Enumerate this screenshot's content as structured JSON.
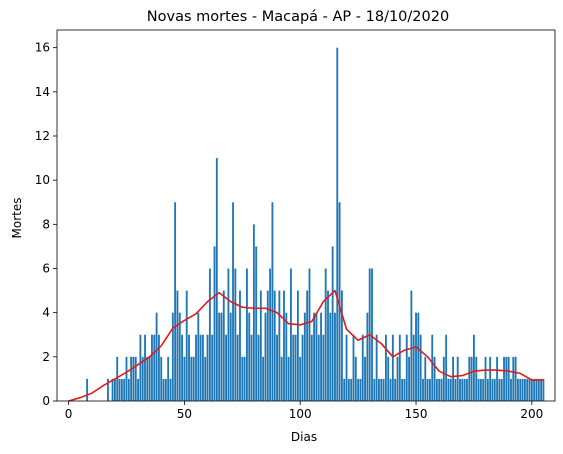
{
  "chart_data": {
    "type": "bar",
    "title": "Novas mortes - Macapá - AP - 18/10/2020",
    "xlabel": "Dias",
    "ylabel": "Mortes",
    "xlim": [
      -5,
      210
    ],
    "ylim": [
      0,
      16.8
    ],
    "xticks": [
      0,
      50,
      100,
      150,
      200
    ],
    "yticks": [
      0,
      2,
      4,
      6,
      8,
      10,
      12,
      14,
      16
    ],
    "grid": false,
    "bar_color": "#1f77b4",
    "line_color": "#e31a1c",
    "series": [
      {
        "type": "bar",
        "x": [
          0,
          1,
          2,
          3,
          4,
          5,
          6,
          7,
          8,
          9,
          10,
          11,
          12,
          13,
          14,
          15,
          16,
          17,
          18,
          19,
          20,
          21,
          22,
          23,
          24,
          25,
          26,
          27,
          28,
          29,
          30,
          31,
          32,
          33,
          34,
          35,
          36,
          37,
          38,
          39,
          40,
          41,
          42,
          43,
          44,
          45,
          46,
          47,
          48,
          49,
          50,
          51,
          52,
          53,
          54,
          55,
          56,
          57,
          58,
          59,
          60,
          61,
          62,
          63,
          64,
          65,
          66,
          67,
          68,
          69,
          70,
          71,
          72,
          73,
          74,
          75,
          76,
          77,
          78,
          79,
          80,
          81,
          82,
          83,
          84,
          85,
          86,
          87,
          88,
          89,
          90,
          91,
          92,
          93,
          94,
          95,
          96,
          97,
          98,
          99,
          100,
          101,
          102,
          103,
          104,
          105,
          106,
          107,
          108,
          109,
          110,
          111,
          112,
          113,
          114,
          115,
          116,
          117,
          118,
          119,
          120,
          121,
          122,
          123,
          124,
          125,
          126,
          127,
          128,
          129,
          130,
          131,
          132,
          133,
          134,
          135,
          136,
          137,
          138,
          139,
          140,
          141,
          142,
          143,
          144,
          145,
          146,
          147,
          148,
          149,
          150,
          151,
          152,
          153,
          154,
          155,
          156,
          157,
          158,
          159,
          160,
          161,
          162,
          163,
          164,
          165,
          166,
          167,
          168,
          169,
          170,
          171,
          172,
          173,
          174,
          175,
          176,
          177,
          178,
          179,
          180,
          181,
          182,
          183,
          184,
          185,
          186,
          187,
          188,
          189,
          190,
          191,
          192,
          193,
          194,
          195,
          196,
          197,
          198,
          199,
          200,
          201,
          202,
          203,
          204,
          205
        ],
        "values": [
          0,
          0,
          0,
          0,
          0,
          0,
          0,
          0,
          1,
          0,
          0,
          0,
          0,
          0,
          0,
          0,
          0,
          1,
          0,
          1,
          1,
          2,
          1,
          1,
          1,
          2,
          1,
          2,
          2,
          2,
          1,
          3,
          2,
          3,
          2,
          2,
          3,
          3,
          4,
          3,
          2,
          1,
          1,
          2,
          1,
          4,
          9,
          5,
          4,
          3,
          2,
          5,
          3,
          2,
          2,
          3,
          4,
          3,
          3,
          2,
          3,
          6,
          3,
          7,
          11,
          4,
          4,
          5,
          3,
          6,
          4,
          9,
          6,
          3,
          5,
          2,
          2,
          6,
          4,
          3,
          8,
          7,
          3,
          5,
          2,
          4,
          5,
          6,
          9,
          5,
          3,
          5,
          2,
          5,
          4,
          2,
          6,
          3,
          3,
          5,
          2,
          3,
          4,
          5,
          6,
          3,
          4,
          4,
          3,
          4,
          3,
          6,
          5,
          4,
          7,
          4,
          16,
          9,
          5,
          1,
          3,
          1,
          1,
          3,
          2,
          1,
          1,
          3,
          2,
          4,
          6,
          6,
          1,
          3,
          1,
          1,
          1,
          3,
          2,
          1,
          3,
          1,
          2,
          3,
          1,
          1,
          3,
          2,
          5,
          3,
          4,
          4,
          3,
          1,
          2,
          1,
          1,
          3,
          2,
          1,
          1,
          1,
          2,
          3,
          1,
          1,
          2,
          1,
          2,
          1,
          1,
          1,
          1,
          2,
          2,
          3,
          2,
          1,
          1,
          1,
          2,
          1,
          2,
          1,
          1,
          2,
          1,
          1,
          2,
          2,
          2,
          1,
          2,
          2,
          1,
          1,
          1,
          1,
          1,
          1,
          1,
          1,
          1,
          1,
          1,
          1
        ]
      },
      {
        "type": "line",
        "x": [
          0,
          5,
          10,
          15,
          20,
          25,
          30,
          35,
          40,
          45,
          50,
          55,
          60,
          65,
          70,
          75,
          80,
          85,
          90,
          95,
          100,
          105,
          110,
          115,
          120,
          125,
          130,
          135,
          140,
          145,
          150,
          155,
          160,
          165,
          170,
          175,
          180,
          185,
          190,
          195,
          200,
          205
        ],
        "values": [
          0,
          0.15,
          0.35,
          0.7,
          1.0,
          1.3,
          1.65,
          2.0,
          2.5,
          3.3,
          3.65,
          3.95,
          4.5,
          4.9,
          4.5,
          4.25,
          4.2,
          4.2,
          4.0,
          3.5,
          3.45,
          3.6,
          4.5,
          5.0,
          3.25,
          2.75,
          3.0,
          2.6,
          2.0,
          2.3,
          2.45,
          2.0,
          1.35,
          1.1,
          1.15,
          1.35,
          1.4,
          1.4,
          1.35,
          1.25,
          0.95,
          0.95
        ]
      }
    ]
  }
}
